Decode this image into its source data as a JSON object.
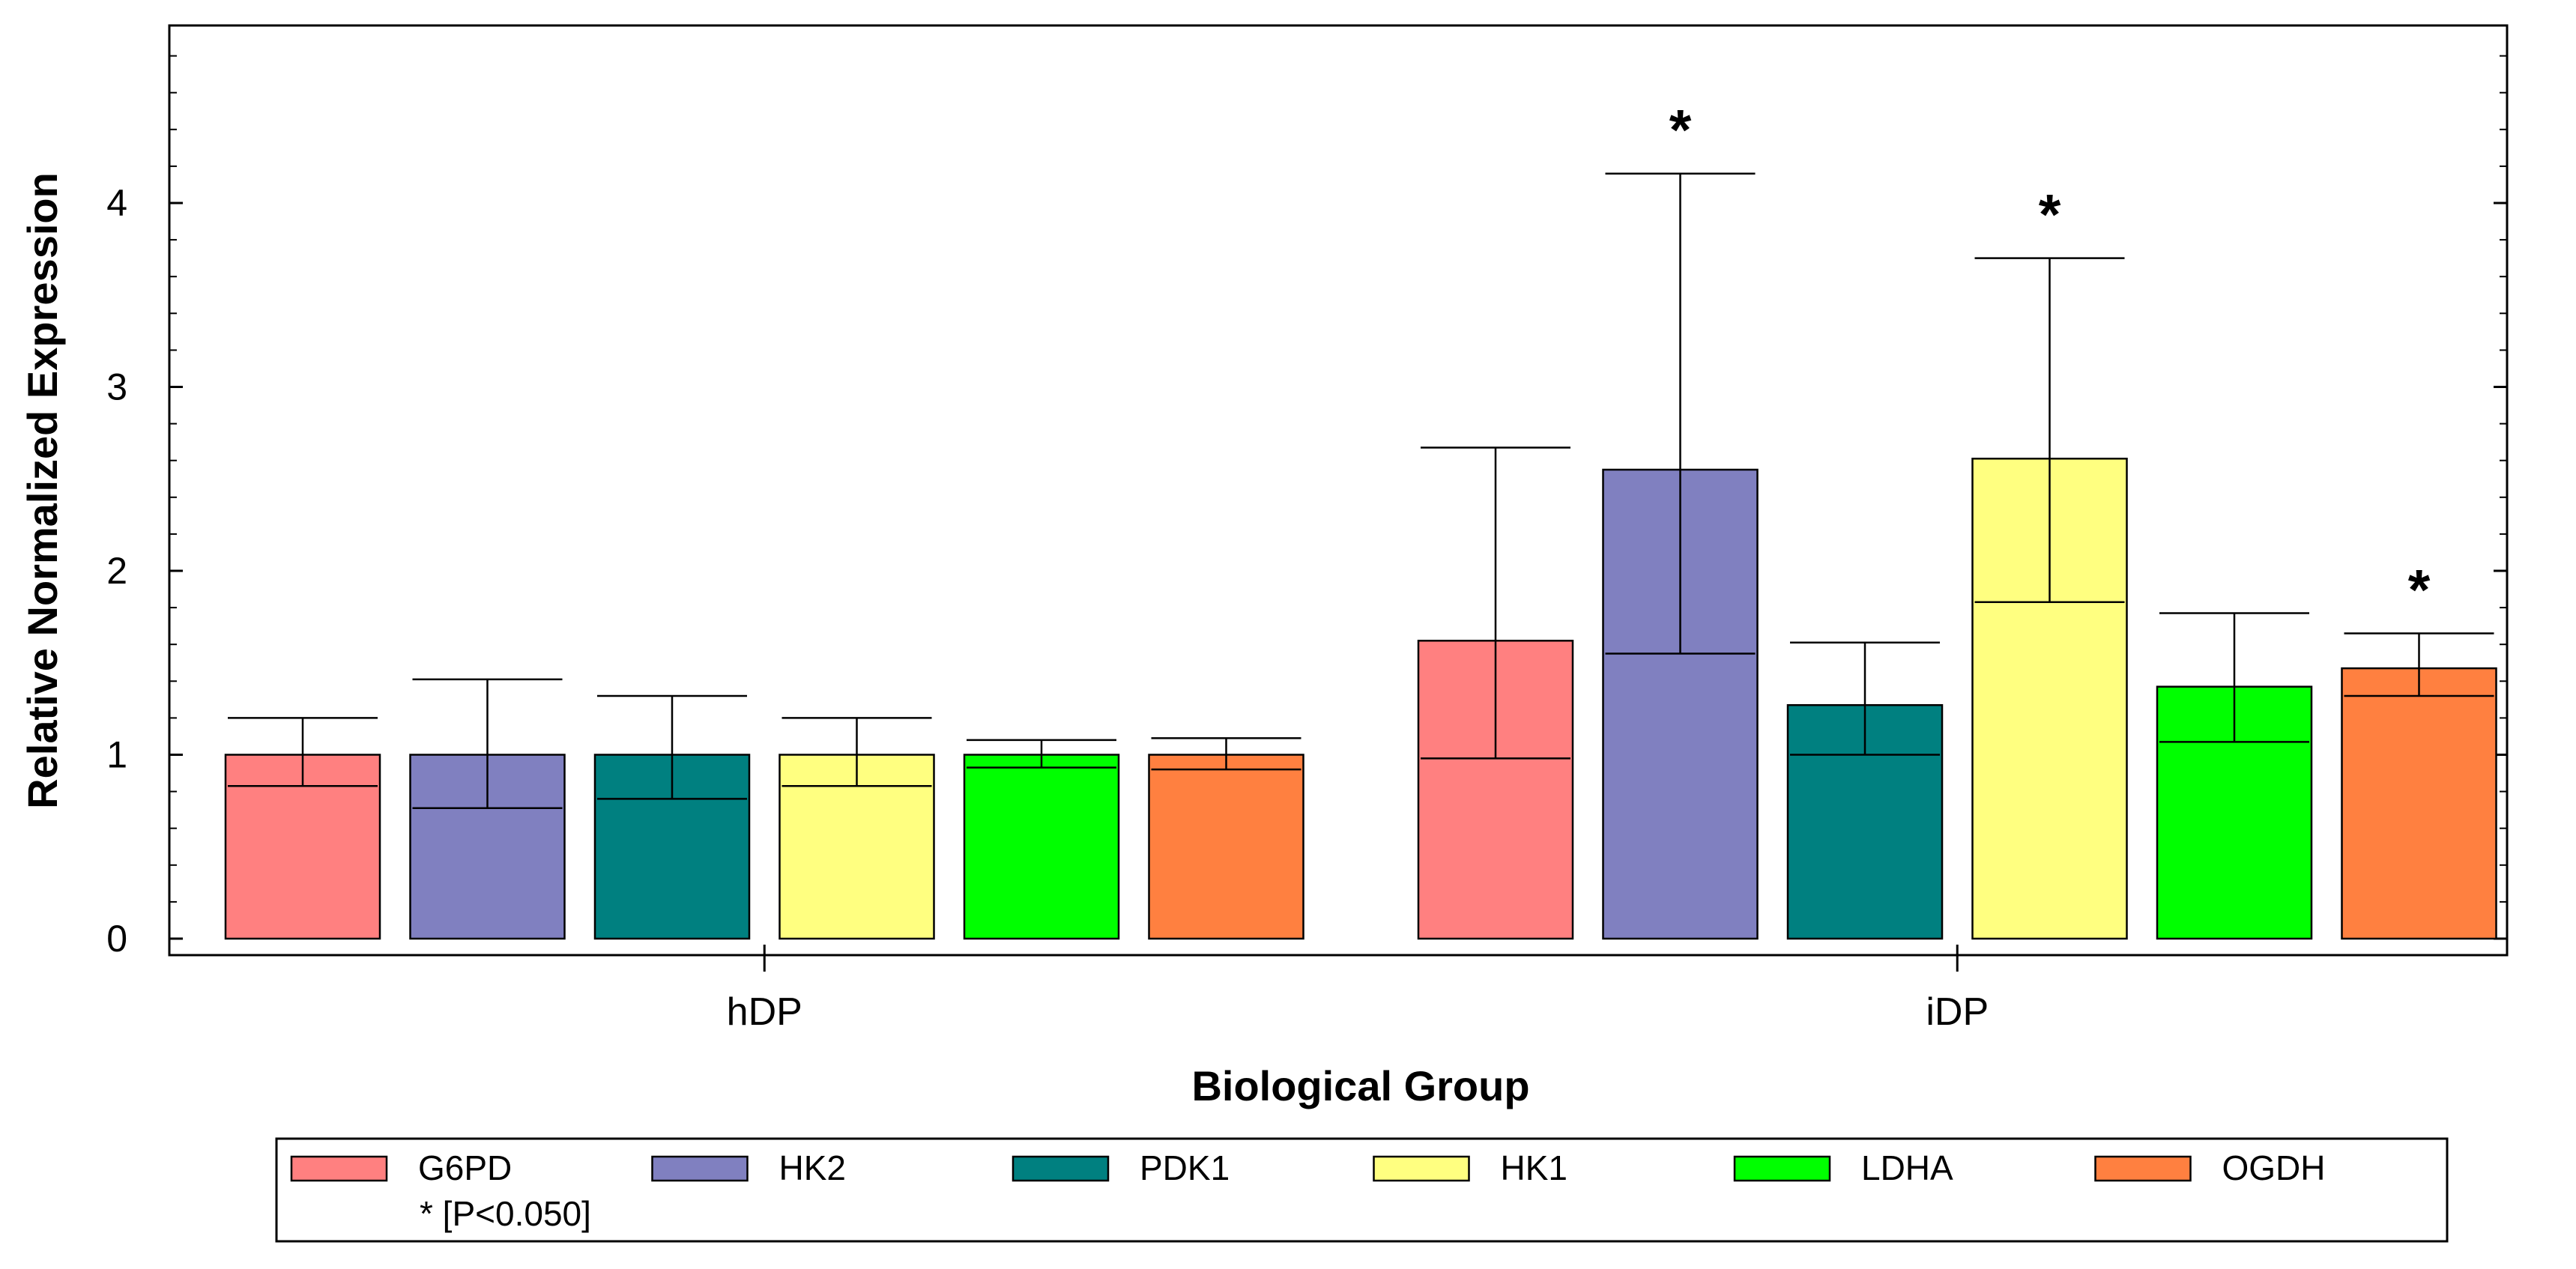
{
  "chart_data": {
    "type": "bar",
    "title": "",
    "xlabel": "Biological Group",
    "ylabel": "Relative Normalized Expression",
    "ylim": [
      0,
      5
    ],
    "yticks": [
      0,
      1,
      2,
      3,
      4
    ],
    "categories": [
      "hDP",
      "iDP"
    ],
    "series": [
      {
        "name": "G6PD",
        "color": "#FF8080",
        "values": [
          1.0,
          1.62
        ],
        "err_low": [
          0.83,
          0.98
        ],
        "err_high": [
          1.2,
          2.67
        ],
        "significant": [
          false,
          false
        ]
      },
      {
        "name": "HK2",
        "color": "#8080C0",
        "values": [
          1.0,
          2.55
        ],
        "err_low": [
          0.71,
          1.55
        ],
        "err_high": [
          1.41,
          4.16
        ],
        "significant": [
          false,
          true
        ]
      },
      {
        "name": "PDK1",
        "color": "#008080",
        "values": [
          1.0,
          1.27
        ],
        "err_low": [
          0.76,
          1.0
        ],
        "err_high": [
          1.32,
          1.61
        ],
        "significant": [
          false,
          false
        ]
      },
      {
        "name": "HK1",
        "color": "#FFFF80",
        "values": [
          1.0,
          2.61
        ],
        "err_low": [
          0.83,
          1.83
        ],
        "err_high": [
          1.2,
          3.7
        ],
        "significant": [
          false,
          true
        ]
      },
      {
        "name": "LDHA",
        "color": "#00FF00",
        "values": [
          1.0,
          1.37
        ],
        "err_low": [
          0.93,
          1.07
        ],
        "err_high": [
          1.08,
          1.77
        ],
        "significant": [
          false,
          false
        ]
      },
      {
        "name": "OGDH",
        "color": "#FF8040",
        "values": [
          1.0,
          1.47
        ],
        "err_low": [
          0.92,
          1.32
        ],
        "err_high": [
          1.09,
          1.66
        ],
        "significant": [
          false,
          true
        ]
      }
    ],
    "significance_marker": "*",
    "significance_note": "* [P<0.050]",
    "legend_position": "bottom"
  }
}
